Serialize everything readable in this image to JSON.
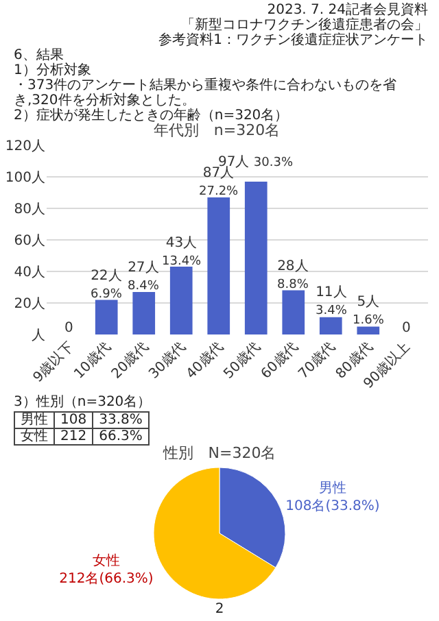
{
  "chart_data": [
    {
      "type": "bar",
      "title": "年代別　n=320名",
      "annotations": [
        "2023. 7. 24記者会見資料",
        "「新型コロナワクチン後遺症患者の会」",
        "参考資料1：ワクチン後遺症症状アンケート",
        "6、結果",
        "1）分析対象",
        "・373件のアンケート結果から重複や条件に合わないものを省き,320件を分析対象とした。",
        "2）症状が発生したときの年齢（n=320名）"
      ],
      "categories": [
        "9歳以下",
        "10歳代",
        "20歳代",
        "30歳代",
        "40歳代",
        "50歳代",
        "60歳代",
        "70歳代",
        "80歳代",
        "90歳以上"
      ],
      "values": [
        0,
        22,
        27,
        43,
        87,
        97,
        28,
        11,
        5,
        0
      ],
      "value_labels": [
        "0",
        "22人\n6.9%",
        "27人\n8.4%",
        "43人\n13.4%",
        "87人\n27.2%",
        "97人 30.3%",
        "28人\n8.8%",
        "11人\n3.4%",
        "5人\n1.6%",
        "0"
      ],
      "color": "#4a62c8",
      "ylim": [
        0,
        120
      ],
      "yticks": [
        {
          "value": 0,
          "label": "人"
        },
        {
          "value": 20,
          "label": "20人"
        },
        {
          "value": 40,
          "label": "40人"
        },
        {
          "value": 60,
          "label": "60人"
        },
        {
          "value": 80,
          "label": "80人"
        },
        {
          "value": 100,
          "label": "100人"
        },
        {
          "value": 120,
          "label": "120人"
        }
      ],
      "grid": "y",
      "legend": false
    },
    {
      "type": "pie",
      "title": "性別　N=320名",
      "annotations": [
        "3）性別（n=320名）",
        "108",
        "33.8%",
        "212",
        "66.3%",
        "2"
      ],
      "categories": [
        "男性",
        "女性"
      ],
      "values": [
        108,
        212
      ],
      "value_labels": [
        "108名(33.8%)",
        "212名(66.3%)"
      ],
      "colors": [
        "#4a62c8",
        "#ffc000"
      ],
      "legend": false
    }
  ]
}
